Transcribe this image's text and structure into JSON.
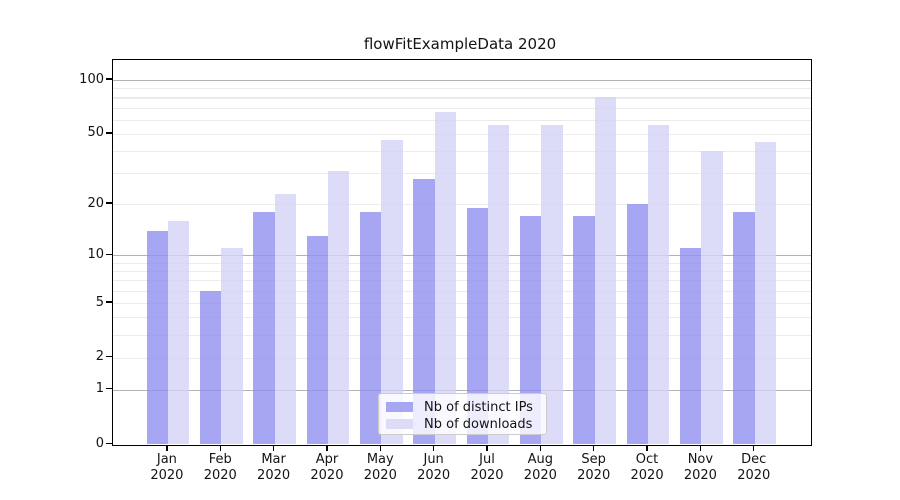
{
  "chart_data": {
    "type": "bar",
    "title": "flowFitExampleData 2020",
    "categories": [
      "Jan",
      "Feb",
      "Mar",
      "Apr",
      "May",
      "Jun",
      "Jul",
      "Aug",
      "Sep",
      "Oct",
      "Nov",
      "Dec"
    ],
    "x_year": "2020",
    "series": [
      {
        "name": "Nb of distinct IPs",
        "slug": "distinct-ips",
        "values": [
          14,
          6,
          18,
          13,
          18,
          28,
          19,
          17,
          17,
          20,
          11,
          18
        ],
        "fill_rgba": "rgba(144,144,240,0.8)",
        "color_hex": "#a6a6f3"
      },
      {
        "name": "Nb of downloads",
        "slug": "downloads",
        "values": [
          16,
          11,
          23,
          31,
          46,
          66,
          56,
          56,
          80,
          56,
          40,
          45
        ],
        "fill_rgba": "rgba(211,211,246,0.8)",
        "color_hex": "#dcdcf8"
      }
    ],
    "yscale": "symlog",
    "y_ticks": [
      0,
      1,
      2,
      5,
      10,
      20,
      50,
      100
    ],
    "ylim": [
      0,
      130
    ],
    "grid": {
      "major_values": [
        1,
        10,
        100
      ],
      "minor_values": [
        2,
        3,
        4,
        5,
        6,
        7,
        8,
        9,
        20,
        30,
        40,
        50,
        60,
        70,
        80,
        90
      ],
      "major_color": "#b3b3b3",
      "minor_color": "#ebebeb"
    },
    "legend_position": "lower-center",
    "axis_color": "#000000",
    "text_color": "#141414"
  }
}
